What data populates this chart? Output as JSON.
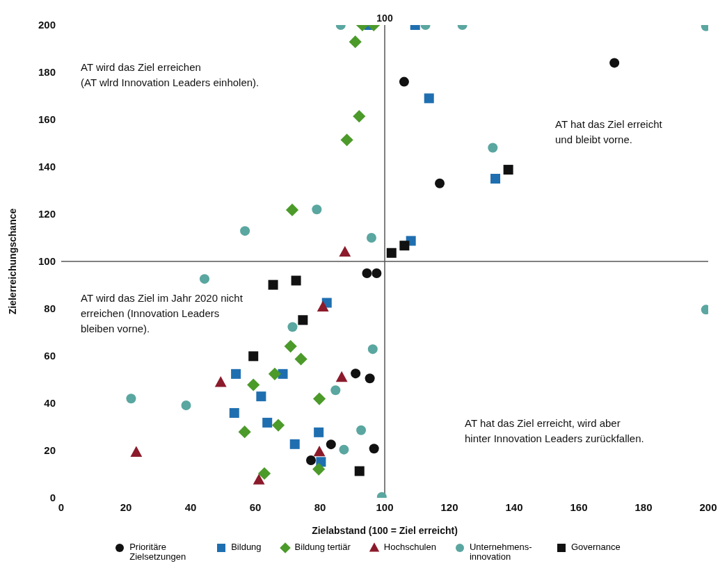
{
  "chart_data": {
    "type": "scatter",
    "xlabel": "Zielabstand (100 = Ziel erreicht)",
    "ylabel": "Zielerreichungschance",
    "xlim": [
      0,
      200
    ],
    "ylim": [
      0,
      200
    ],
    "xticks": [
      0,
      20,
      40,
      60,
      80,
      100,
      120,
      140,
      160,
      180,
      200
    ],
    "yticks": [
      0,
      20,
      40,
      60,
      80,
      100,
      120,
      140,
      160,
      180,
      200
    ],
    "legend": "bottom",
    "ref_lines": [
      {
        "axis": "x",
        "value": 100,
        "label": "100",
        "color": "#555555"
      },
      {
        "axis": "y",
        "value": 100,
        "color": "#555555"
      }
    ],
    "annotations": [
      "AT wird das Ziel erreichen\n(AT wlrd Innovation Leaders einholen).",
      "AT hat das Ziel erreicht\nund bleibt vorne.",
      "AT wird das Ziel im Jahr 2020 nicht\nerreichen (Innovation Leaders\nbleiben vorne).",
      "AT hat das Ziel erreicht, wird aber\nhinter Innovation Leaders zurückfallen."
    ],
    "series": [
      {
        "name": "Prioritäre Zielsetzungen",
        "color": "#111111",
        "marker": "circle",
        "x": [
          171,
          106,
          117,
          94.5,
          97.5,
          91,
          95.4,
          83.4,
          96.7,
          77.2
        ],
        "values": [
          184,
          176,
          133,
          95,
          95,
          52.6,
          50.5,
          22.6,
          20.8,
          15.9
        ]
      },
      {
        "name": "Bildung",
        "color": "#1f6fb0",
        "marker": "square",
        "x": [
          109.4,
          95.2,
          113.7,
          134.2,
          108.1,
          82.1,
          54,
          68.5,
          61.8,
          53.5,
          63.7,
          79.6,
          72.2,
          80.3
        ],
        "values": [
          200,
          200,
          169,
          135,
          108.7,
          82.5,
          52.4,
          52.4,
          42.9,
          35.9,
          31.8,
          27.7,
          22.7,
          15.2
        ]
      },
      {
        "name": "Bildung tertiär",
        "color": "#4c9a2a",
        "marker": "diamond",
        "x": [
          93.1,
          96.6,
          90.9,
          92.1,
          88.3,
          71.4,
          70.9,
          74.1,
          66,
          59.4,
          79.8,
          67.1,
          56.7,
          79.6,
          62.8
        ],
        "values": [
          200,
          200,
          192.9,
          161.4,
          151.4,
          121.8,
          64.1,
          58.7,
          52.4,
          47.8,
          41.9,
          30.7,
          27.9,
          12.1,
          10.3
        ]
      },
      {
        "name": "Hochschulen",
        "color": "#8b1a2b",
        "marker": "triangle",
        "x": [
          87.7,
          80.9,
          49.3,
          86.7,
          23.2,
          79.8,
          61.1
        ],
        "values": [
          103.9,
          80.7,
          48.8,
          50.9,
          19.2,
          19.4,
          7.5
        ]
      },
      {
        "name": "Unternehmens-innovation",
        "color": "#5aa6a0",
        "marker": "circle",
        "x": [
          86.4,
          56.8,
          79,
          95.9,
          112.6,
          124,
          199.3,
          133.4,
          199.3,
          99.1,
          44.3,
          71.5,
          96.3,
          84.8,
          21.6,
          38.6,
          92.7,
          87.4
        ],
        "values": [
          200,
          112.9,
          122,
          110,
          200,
          200,
          199.5,
          148.1,
          79.6,
          0.4,
          92.6,
          72.3,
          62.9,
          45.5,
          42,
          39.1,
          28.6,
          20.4
        ]
      },
      {
        "name": "Governance",
        "color": "#111111",
        "marker": "square",
        "x": [
          65.5,
          72.6,
          74.7,
          59.4,
          92.2,
          138.2,
          106.1,
          102.1
        ],
        "values": [
          90.1,
          91.9,
          75.2,
          59.9,
          11.3,
          138.8,
          106.7,
          103.6
        ]
      }
    ]
  }
}
